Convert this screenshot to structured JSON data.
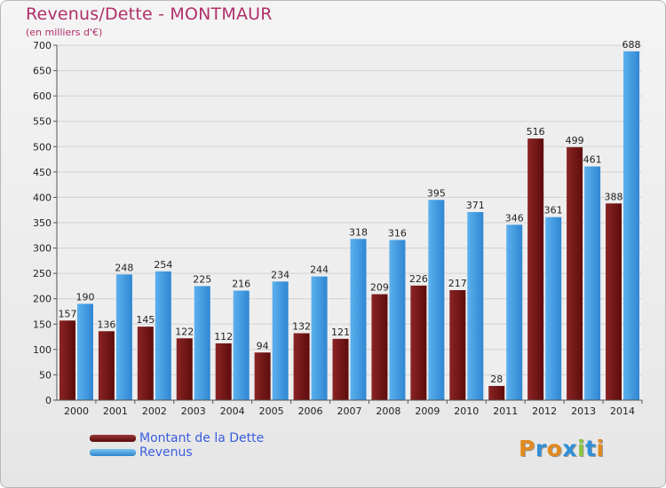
{
  "title": "Revenus/Dette - MONTMAUR",
  "subtitle": "(en milliers d'€)",
  "logo": {
    "text": "Proxiti"
  },
  "legend": [
    {
      "label": "Montant de la Dette",
      "color": "#6e1414"
    },
    {
      "label": "Revenus",
      "color": "#3d9ae0"
    }
  ],
  "chart_data": {
    "type": "bar",
    "title": "Revenus/Dette - MONTMAUR",
    "subtitle": "(en milliers d'€)",
    "categories": [
      "2000",
      "2001",
      "2002",
      "2003",
      "2004",
      "2005",
      "2006",
      "2007",
      "2008",
      "2009",
      "2010",
      "2011",
      "2012",
      "2013",
      "2014"
    ],
    "series": [
      {
        "name": "Montant de la Dette",
        "color": "#6e1414",
        "values": [
          157,
          136,
          145,
          122,
          112,
          94,
          132,
          121,
          209,
          226,
          217,
          28,
          516,
          499,
          388
        ]
      },
      {
        "name": "Revenus",
        "color": "#3d9ae0",
        "values": [
          190,
          248,
          254,
          225,
          216,
          234,
          244,
          318,
          316,
          395,
          371,
          346,
          361,
          461,
          688
        ]
      }
    ],
    "yticks": [
      0,
      50,
      100,
      150,
      200,
      250,
      300,
      350,
      400,
      450,
      500,
      550,
      600,
      650,
      700
    ],
    "ylim": [
      0,
      700
    ],
    "grid": true,
    "legend_position": "bottom-left"
  }
}
